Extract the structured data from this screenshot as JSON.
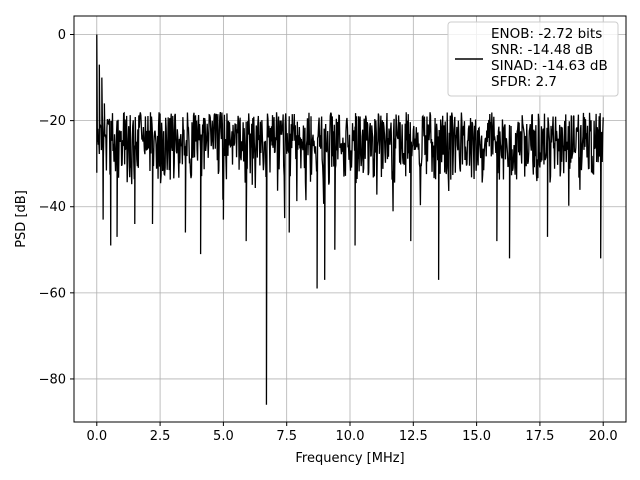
{
  "chart_data": {
    "type": "line",
    "xlabel": "Frequency [MHz]",
    "ylabel": "PSD [dB]",
    "xlim": [
      -0.9,
      20.9
    ],
    "ylim": [
      -90,
      4.3
    ],
    "x_ticks": [
      0.0,
      2.5,
      5.0,
      7.5,
      10.0,
      12.5,
      15.0,
      17.5,
      20.0
    ],
    "x_tick_labels": [
      "0.0",
      "2.5",
      "5.0",
      "7.5",
      "10.0",
      "12.5",
      "15.0",
      "17.5",
      "20.0"
    ],
    "y_ticks": [
      0,
      -20,
      -40,
      -60,
      -80
    ],
    "y_tick_labels": [
      "0",
      "−20",
      "−40",
      "−60",
      "−80"
    ],
    "grid": true,
    "legend_position": "upper right",
    "legend": [
      "ENOB: -2.72 bits",
      "SNR: -14.48 dB",
      "SINAD: -14.63 dB",
      "SFDR: 2.7"
    ],
    "series": [
      {
        "color": "#000000",
        "x_range": [
          0,
          20
        ],
        "noise_band_db": [
          -35,
          -18
        ],
        "points": [
          {
            "x": 0.0,
            "y": 0.0
          },
          {
            "x": 0.02,
            "y": -25
          },
          {
            "x": 0.1,
            "y": -7
          },
          {
            "x": 0.2,
            "y": -10
          },
          {
            "x": 0.25,
            "y": -43
          },
          {
            "x": 0.3,
            "y": -16
          },
          {
            "x": 0.55,
            "y": -49
          },
          {
            "x": 0.8,
            "y": -47
          },
          {
            "x": 1.5,
            "y": -44
          },
          {
            "x": 2.2,
            "y": -44
          },
          {
            "x": 3.5,
            "y": -46
          },
          {
            "x": 4.1,
            "y": -51
          },
          {
            "x": 5.0,
            "y": -43
          },
          {
            "x": 5.9,
            "y": -48
          },
          {
            "x": 6.7,
            "y": -86
          },
          {
            "x": 7.6,
            "y": -46
          },
          {
            "x": 8.7,
            "y": -59
          },
          {
            "x": 9.0,
            "y": -57
          },
          {
            "x": 9.4,
            "y": -50
          },
          {
            "x": 10.2,
            "y": -49
          },
          {
            "x": 12.4,
            "y": -48
          },
          {
            "x": 13.5,
            "y": -57
          },
          {
            "x": 15.8,
            "y": -48
          },
          {
            "x": 16.3,
            "y": -52
          },
          {
            "x": 17.8,
            "y": -47
          },
          {
            "x": 19.9,
            "y": -52
          }
        ]
      }
    ]
  }
}
